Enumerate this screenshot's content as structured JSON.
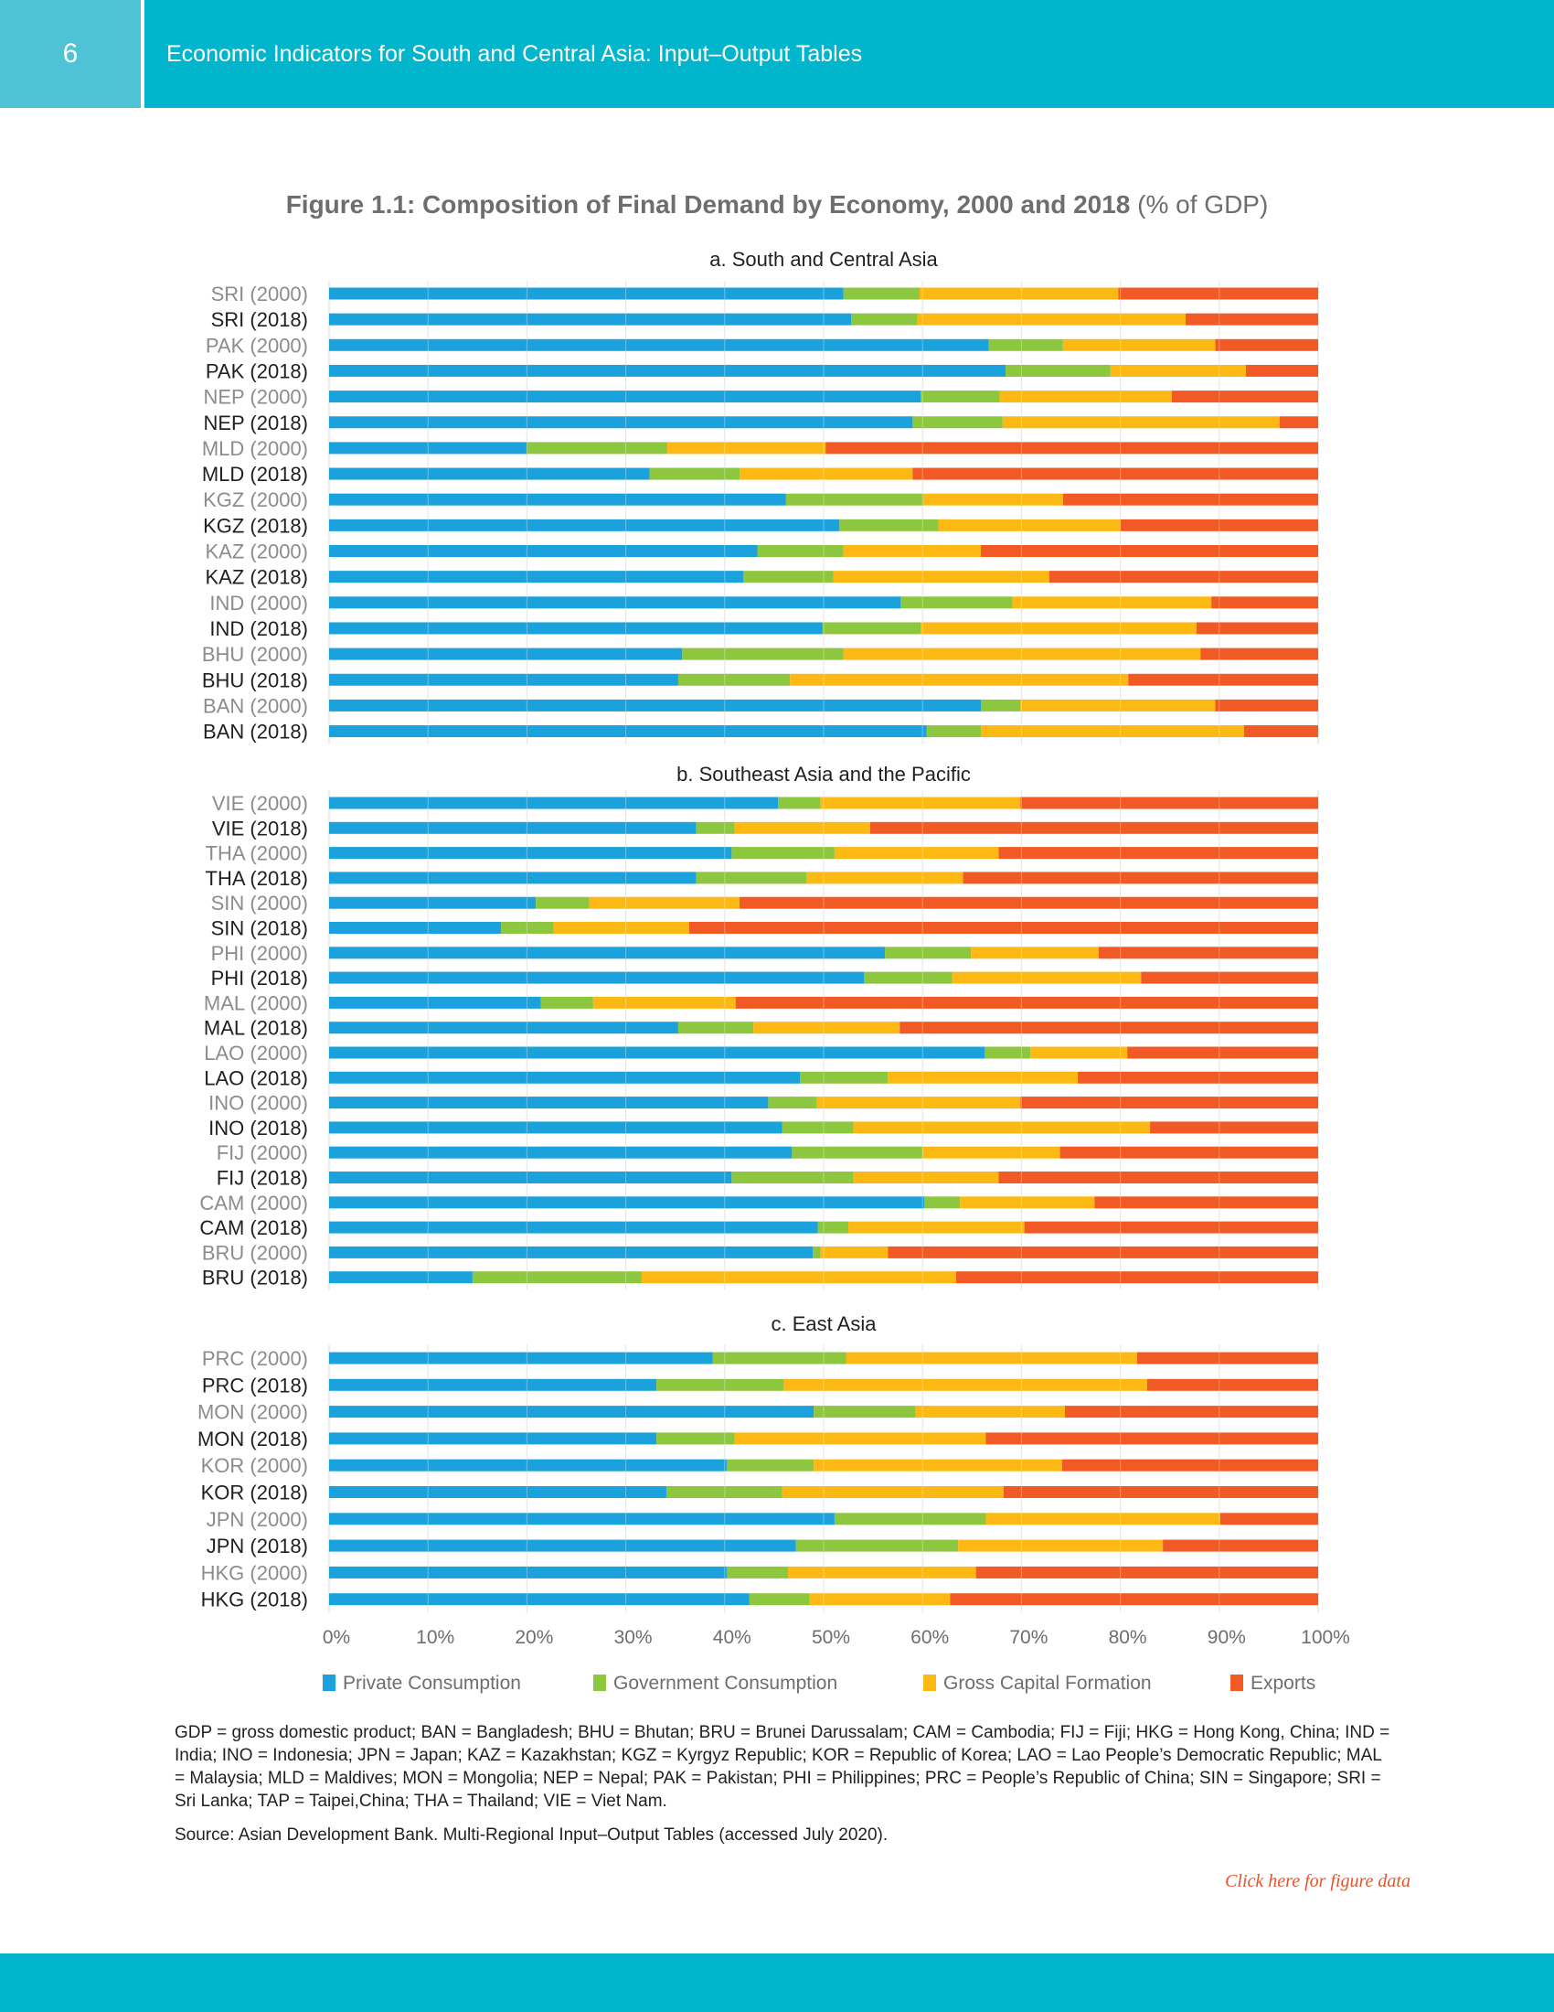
{
  "header": {
    "page_number": "6",
    "title": "Economic Indicators for South and Central Asia: Input–Output Tables"
  },
  "figure": {
    "title": "Figure 1.1:  Composition of Final Demand by Economy, 2000 and 2018",
    "unit": "(% of GDP)"
  },
  "colors": {
    "private_consumption": "#1ba1db",
    "government_consumption": "#8dc63f",
    "gross_capital_formation": "#fdb913",
    "exports": "#f15a24",
    "header": "#00b5cc",
    "header_left": "#4fc3d6"
  },
  "legend": [
    "Private Consumption",
    "Government Consumption",
    "Gross Capital Formation",
    "Exports"
  ],
  "chart_data": [
    {
      "type": "bar",
      "orientation": "horizontal",
      "stacked": "percent",
      "title": "a. South and Central Asia",
      "categories": [
        "SRI (2000)",
        "SRI (2018)",
        "PAK (2000)",
        "PAK (2018)",
        "NEP (2000)",
        "NEP (2018)",
        "MLD (2000)",
        "MLD (2018)",
        "KGZ (2000)",
        "KGZ (2018)",
        "KAZ (2000)",
        "KAZ (2018)",
        "IND (2000)",
        "IND (2018)",
        "BHU (2000)",
        "BHU (2018)",
        "BAN (2000)",
        "BAN (2018)"
      ],
      "series": [
        {
          "name": "Private Consumption",
          "values": [
            52.0,
            52.8,
            66.7,
            68.4,
            59.8,
            59.0,
            20.0,
            32.4,
            46.2,
            51.6,
            43.3,
            41.9,
            57.8,
            49.9,
            35.7,
            35.3,
            65.9,
            60.4
          ]
        },
        {
          "name": "Government Consumption",
          "values": [
            7.7,
            6.7,
            7.5,
            10.6,
            8.0,
            9.1,
            14.2,
            9.1,
            13.9,
            10.0,
            8.7,
            9.1,
            11.3,
            9.9,
            16.3,
            11.3,
            4.0,
            5.5
          ]
        },
        {
          "name": "Gross Capital Formation",
          "values": [
            20.1,
            27.1,
            15.4,
            13.7,
            17.4,
            28.0,
            16.0,
            17.5,
            14.1,
            18.4,
            13.9,
            21.8,
            20.1,
            27.9,
            36.1,
            34.2,
            19.7,
            26.6
          ]
        },
        {
          "name": "Exports",
          "values": [
            20.2,
            13.4,
            10.4,
            7.3,
            14.8,
            3.9,
            49.8,
            41.0,
            25.8,
            20.0,
            34.1,
            27.2,
            10.8,
            12.3,
            11.9,
            19.2,
            10.4,
            7.5
          ]
        }
      ],
      "xlim": [
        0,
        100
      ]
    },
    {
      "type": "bar",
      "orientation": "horizontal",
      "stacked": "percent",
      "title": "b. Southeast Asia and the Pacific",
      "categories": [
        "VIE (2000)",
        "VIE (2018)",
        "THA (2000)",
        "THA (2018)",
        "SIN (2000)",
        "SIN (2018)",
        "PHI (2000)",
        "PHI (2018)",
        "MAL (2000)",
        "MAL (2018)",
        "LAO (2000)",
        "LAO (2018)",
        "INO (2000)",
        "INO (2018)",
        "FIJ (2000)",
        "FIJ (2018)",
        "CAM (2000)",
        "CAM (2018)",
        "BRU (2000)",
        "BRU (2018)"
      ],
      "series": [
        {
          "name": "Private Consumption",
          "values": [
            45.4,
            37.1,
            40.7,
            37.1,
            20.9,
            17.4,
            56.2,
            54.1,
            21.4,
            35.3,
            66.3,
            47.6,
            44.4,
            45.8,
            46.8,
            40.7,
            60.2,
            49.4,
            48.9,
            14.5
          ]
        },
        {
          "name": "Government Consumption",
          "values": [
            4.3,
            3.9,
            10.4,
            11.2,
            5.4,
            5.3,
            8.7,
            8.9,
            5.3,
            7.6,
            4.6,
            8.9,
            4.9,
            7.2,
            13.2,
            12.3,
            3.6,
            3.1,
            0.8,
            17.1
          ]
        },
        {
          "name": "Gross Capital Formation",
          "values": [
            20.2,
            13.7,
            16.6,
            15.8,
            15.2,
            13.7,
            12.9,
            19.1,
            14.4,
            14.8,
            9.8,
            19.2,
            20.6,
            30.0,
            13.9,
            14.7,
            13.6,
            17.8,
            6.8,
            31.8
          ]
        },
        {
          "name": "Exports",
          "values": [
            30.1,
            45.3,
            32.3,
            35.9,
            58.5,
            63.6,
            22.2,
            17.9,
            58.9,
            42.3,
            19.3,
            24.3,
            30.1,
            17.0,
            26.1,
            32.3,
            22.6,
            29.7,
            43.5,
            36.6
          ]
        }
      ],
      "xlim": [
        0,
        100
      ]
    },
    {
      "type": "bar",
      "orientation": "horizontal",
      "stacked": "percent",
      "title": "c. East Asia",
      "categories": [
        "PRC (2000)",
        "PRC (2018)",
        "MON (2000)",
        "MON (2018)",
        "KOR (2000)",
        "KOR (2018)",
        "JPN (2000)",
        "JPN (2018)",
        "HKG (2000)",
        "HKG (2018)"
      ],
      "series": [
        {
          "name": "Private Consumption",
          "values": [
            38.8,
            33.1,
            49.0,
            33.1,
            40.2,
            34.1,
            51.1,
            47.2,
            40.2,
            42.5
          ]
        },
        {
          "name": "Government Consumption",
          "values": [
            13.5,
            12.9,
            10.3,
            7.9,
            8.8,
            11.7,
            15.3,
            16.4,
            6.2,
            6.1
          ]
        },
        {
          "name": "Gross Capital Formation",
          "values": [
            29.4,
            36.7,
            15.1,
            25.4,
            25.1,
            22.4,
            23.7,
            20.7,
            19.0,
            14.2
          ]
        },
        {
          "name": "Exports",
          "values": [
            18.3,
            17.3,
            25.6,
            33.6,
            25.9,
            31.8,
            9.9,
            15.7,
            34.6,
            37.2
          ]
        }
      ],
      "xlim": [
        0,
        100
      ],
      "xticks": [
        "0%",
        "10%",
        "20%",
        "30%",
        "40%",
        "50%",
        "60%",
        "70%",
        "80%",
        "90%",
        "100%"
      ]
    }
  ],
  "notes": "GDP = gross domestic product; BAN = Bangladesh; BHU = Bhutan; BRU = Brunei Darussalam; CAM = Cambodia; FIJ = Fiji; HKG = Hong Kong, China; IND = India; INO = Indonesia; JPN = Japan; KAZ = Kazakhstan; KGZ = Kyrgyz Republic; KOR = Republic of Korea; LAO = Lao People’s Democratic Republic; MAL = Malaysia; MLD = Maldives; MON = Mongolia; NEP = Nepal; PAK = Pakistan; PHI = Philippines; PRC = People’s Republic of China; SIN = Singapore; SRI = Sri Lanka; TAP = Taipei,China; THA = Thailand; VIE = Viet Nam.",
  "source": "Source: Asian Development Bank. Multi-Regional Input–Output Tables (accessed July 2020).",
  "figure_data_link": "Click here for figure data"
}
